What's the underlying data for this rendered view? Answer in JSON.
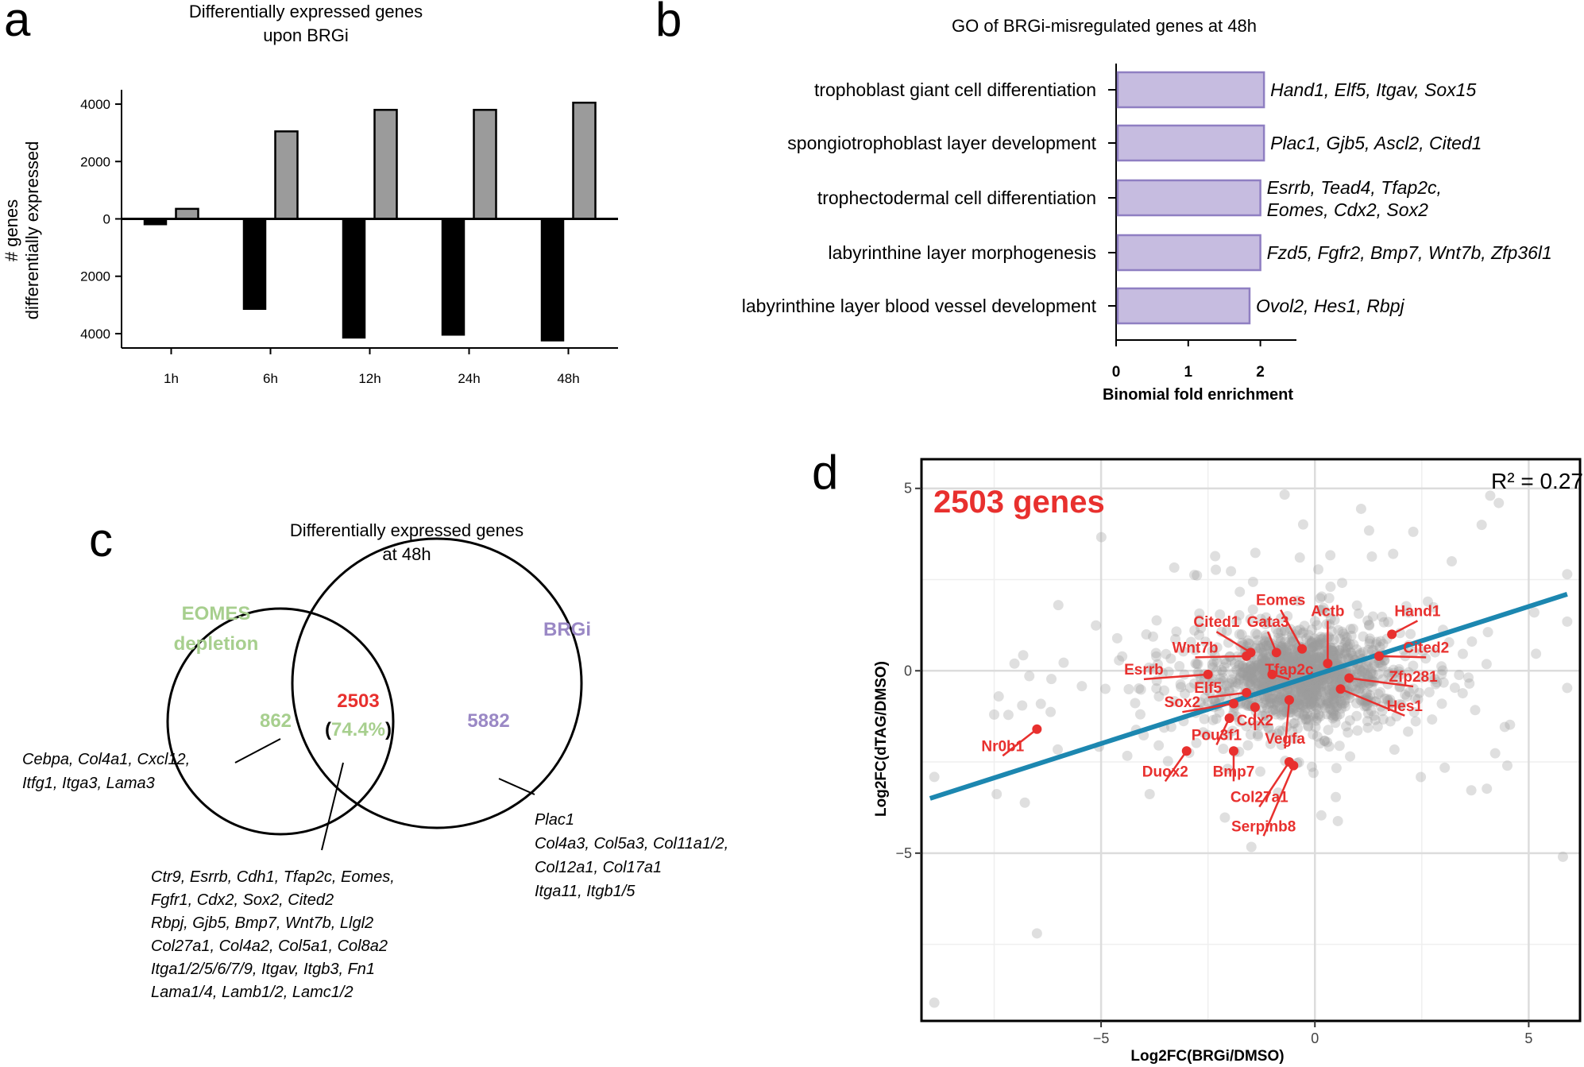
{
  "colors": {
    "up_bar": "#9b9b9b",
    "down_bar": "#000000",
    "go_bar": "#c6bce0",
    "go_bar_edge": "#8f7fc2",
    "eomes": "#a7cf8e",
    "brgi": "#9a88c5",
    "overlap": "#e8302e",
    "highlight": "#e8302e",
    "fit_line": "#1c87b0",
    "scatter_gray": "#9a9a9a"
  },
  "panels": {
    "a": {
      "letter": "a",
      "title": [
        "Differentially expressed genes",
        "upon BRGi"
      ],
      "ylabel": [
        "# genes",
        "differentially expressed"
      ],
      "chart_data": {
        "type": "bar",
        "categories": [
          "1h",
          "6h",
          "12h",
          "24h",
          "48h"
        ],
        "series": [
          {
            "name": "up",
            "values": [
              350,
              3050,
              3800,
              3800,
              4050
            ]
          },
          {
            "name": "down",
            "values": [
              -200,
              -3150,
              -4150,
              -4050,
              -4250
            ]
          }
        ],
        "ylim": [
          -4500,
          4500
        ],
        "yticks": [
          4000,
          2000,
          0,
          2000,
          4000
        ],
        "ytick_values": [
          4000,
          2000,
          0,
          -2000,
          -4000
        ]
      }
    },
    "b": {
      "letter": "b",
      "title": "GO of BRGi-misregulated genes at 48h",
      "xlabel": "Binomial fold enrichment",
      "chart_data": {
        "type": "bar",
        "orientation": "horizontal",
        "categories": [
          "trophoblast giant cell differentiation",
          "spongiotrophoblast layer development",
          "trophectodermal cell differentiation",
          "labyrinthine layer morphogenesis",
          "labyrinthine layer blood vessel development"
        ],
        "values": [
          2.05,
          2.05,
          2.0,
          2.0,
          1.85
        ],
        "gene_labels": [
          [
            "Hand1, Elf5, Itgav, Sox15"
          ],
          [
            "Plac1, Gjb5, Ascl2, Cited1"
          ],
          [
            "Esrrb, Tead4, Tfap2c,",
            "Eomes, Cdx2, Sox2"
          ],
          [
            "Fzd5, Fgfr2, Bmp7, Wnt7b, Zfp36l1"
          ],
          [
            "Ovol2, Hes1, Rbpj"
          ]
        ],
        "xlim": [
          0,
          2.5
        ],
        "xticks": [
          0,
          1,
          2
        ]
      }
    },
    "c": {
      "letter": "c",
      "title": [
        "Differentially expressed genes",
        "at 48h"
      ],
      "set_a": [
        "EOMES",
        "depletion"
      ],
      "set_b": "BRGi",
      "only_a": "862",
      "overlap": "2503",
      "overlap_pct": "74.4%",
      "paren_open": "(",
      "paren_close": ")",
      "only_b": "5882",
      "left_genes": [
        "Cebpa, Col4a1, Cxcl12,",
        "Itfg1, Itga3, Lama3"
      ],
      "right_genes": [
        "Plac1",
        "Col4a3, Col5a3, Col11a1/2,",
        "Col12a1, Col17a1",
        "Itga11, Itgb1/5"
      ],
      "center_genes": [
        "Ctr9, Esrrb, Cdh1, Tfap2c, Eomes,",
        "Fgfr1, Cdx2, Sox2, Cited2",
        "Rbpj, Gjb5, Bmp7, Wnt7b, Llgl2",
        "Col27a1, Col4a2, Col5a1, Col8a2",
        "Itga1/2/5/6/7/9, Itgav, Itgb3, Fn1",
        "Lama1/4, Lamb1/2, Lamc1/2"
      ]
    },
    "d": {
      "letter": "d",
      "headline": "2503 genes",
      "r2": "R² = 0.27",
      "xlabel": "Log2FC(BRGi/DMSO)",
      "ylabel": "Log2FC(dTAG/DMSO)",
      "chart_data": {
        "type": "scatter",
        "xlim": [
          -9.2,
          6.2
        ],
        "ylim": [
          -9.6,
          5.8
        ],
        "xticks": [
          -5,
          0,
          5
        ],
        "yticks": [
          5,
          0,
          -5
        ],
        "fit": {
          "x1": -9.0,
          "y1": -3.5,
          "x2": 5.9,
          "y2": 2.1
        },
        "labeled_points": [
          {
            "gene": "Eomes",
            "x": -0.3,
            "y": 0.6,
            "lx": -0.8,
            "ly": 1.8
          },
          {
            "gene": "Cited1",
            "x": -1.5,
            "y": 0.5,
            "lx": -2.3,
            "ly": 1.2
          },
          {
            "gene": "Gata3",
            "x": -0.9,
            "y": 0.5,
            "lx": -1.1,
            "ly": 1.2
          },
          {
            "gene": "Actb",
            "x": 0.3,
            "y": 0.2,
            "lx": 0.3,
            "ly": 1.5
          },
          {
            "gene": "Hand1",
            "x": 1.8,
            "y": 1.0,
            "lx": 2.4,
            "ly": 1.5
          },
          {
            "gene": "Wnt7b",
            "x": -1.6,
            "y": 0.4,
            "lx": -2.8,
            "ly": 0.5
          },
          {
            "gene": "Cited2",
            "x": 1.5,
            "y": 0.4,
            "lx": 2.6,
            "ly": 0.5
          },
          {
            "gene": "Esrrb",
            "x": -2.5,
            "y": -0.1,
            "lx": -4.0,
            "ly": -0.1
          },
          {
            "gene": "Tfap2c",
            "x": -1.0,
            "y": -0.1,
            "lx": -0.6,
            "ly": -0.1
          },
          {
            "gene": "Zfp281",
            "x": 0.8,
            "y": -0.2,
            "lx": 2.3,
            "ly": -0.3
          },
          {
            "gene": "Elf5",
            "x": -1.6,
            "y": -0.6,
            "lx": -2.5,
            "ly": -0.6
          },
          {
            "gene": "Hes1",
            "x": 0.6,
            "y": -0.5,
            "lx": 2.1,
            "ly": -1.1
          },
          {
            "gene": "Sox2",
            "x": -1.9,
            "y": -0.9,
            "lx": -3.1,
            "ly": -1.0
          },
          {
            "gene": "Cdx2",
            "x": -1.4,
            "y": -1.0,
            "lx": -1.4,
            "ly": -1.5
          },
          {
            "gene": "Pou3f1",
            "x": -2.0,
            "y": -1.3,
            "lx": -2.3,
            "ly": -1.9
          },
          {
            "gene": "Vegfa",
            "x": -0.6,
            "y": -0.8,
            "lx": -0.7,
            "ly": -2.0
          },
          {
            "gene": "Nr0b1",
            "x": -6.5,
            "y": -1.6,
            "lx": -7.3,
            "ly": -2.2
          },
          {
            "gene": "Duox2",
            "x": -3.0,
            "y": -2.2,
            "lx": -3.5,
            "ly": -2.9
          },
          {
            "gene": "Bmp7",
            "x": -1.9,
            "y": -2.2,
            "lx": -1.9,
            "ly": -2.9
          },
          {
            "gene": "Col27a1",
            "x": -0.6,
            "y": -2.5,
            "lx": -1.3,
            "ly": -3.6
          },
          {
            "gene": "Serpinb8",
            "x": -0.5,
            "y": -2.6,
            "lx": -1.2,
            "ly": -4.4
          }
        ]
      }
    }
  }
}
